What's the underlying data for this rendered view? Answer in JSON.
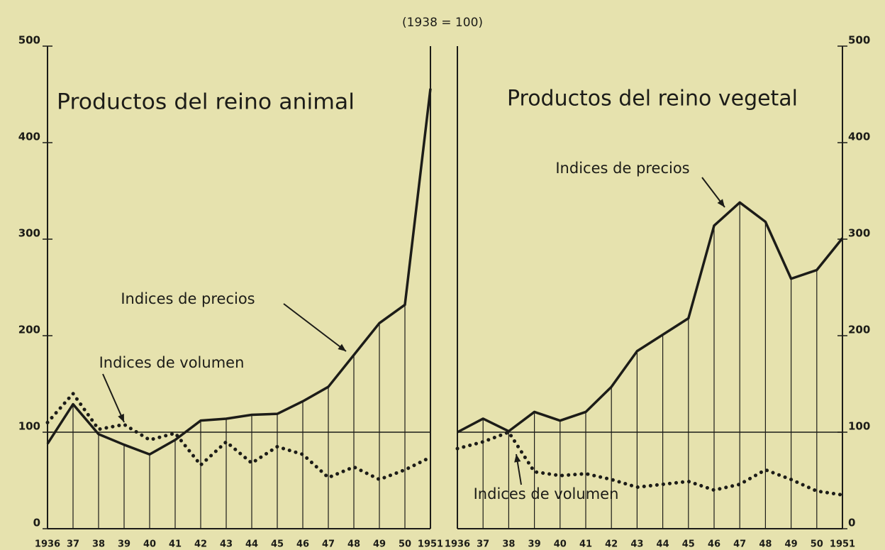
{
  "subtitle": "(1938 = 100)",
  "chart_data": [
    {
      "type": "line",
      "title": "Productos del reino animal",
      "y_axis_side": "left",
      "categories": [
        "1936",
        "37",
        "38",
        "39",
        "40",
        "41",
        "42",
        "43",
        "44",
        "45",
        "46",
        "47",
        "48",
        "49",
        "50",
        "1951"
      ],
      "ylim": [
        0,
        500
      ],
      "yticks": [
        0,
        100,
        200,
        300,
        400,
        500
      ],
      "hline": 100,
      "series": [
        {
          "name": "Indices de precios",
          "color": "#1c1c18",
          "style": "solid",
          "values": [
            88,
            129,
            98,
            87,
            77,
            92,
            112,
            114,
            118,
            119,
            132,
            147,
            180,
            213,
            232,
            456
          ]
        },
        {
          "name": "Indices de volumen",
          "color": "#1c1c18",
          "style": "dotted",
          "values": [
            110,
            140,
            103,
            108,
            92,
            99,
            66,
            90,
            68,
            85,
            77,
            53,
            64,
            51,
            61,
            74
          ]
        }
      ]
    },
    {
      "type": "line",
      "title": "Productos del reino vegetal",
      "y_axis_side": "right",
      "categories": [
        "1936",
        "37",
        "38",
        "39",
        "40",
        "41",
        "42",
        "43",
        "44",
        "45",
        "46",
        "47",
        "48",
        "49",
        "50",
        "1951"
      ],
      "ylim": [
        0,
        500
      ],
      "yticks": [
        0,
        100,
        200,
        300,
        400,
        500
      ],
      "hline": 100,
      "series": [
        {
          "name": "Indices de precios",
          "color": "#1c1c18",
          "style": "solid",
          "values": [
            100,
            114,
            101,
            121,
            112,
            121,
            147,
            184,
            201,
            218,
            314,
            338,
            318,
            259,
            268,
            301
          ]
        },
        {
          "name": "Indices de volumen",
          "color": "#1c1c18",
          "style": "dotted",
          "values": [
            83,
            90,
            100,
            59,
            55,
            57,
            51,
            43,
            46,
            49,
            40,
            46,
            61,
            51,
            39,
            35
          ]
        }
      ]
    }
  ]
}
